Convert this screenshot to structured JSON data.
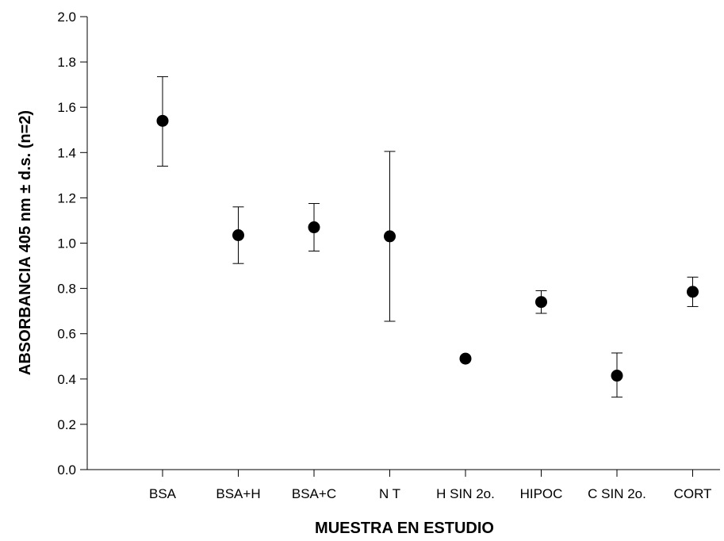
{
  "chart_data": {
    "type": "scatter",
    "title": "",
    "xlabel": "MUESTRA EN ESTUDIO",
    "ylabel": "ABSORBANCIA 405 nm ± d.s. (n=2)",
    "ylim": [
      0,
      2.0
    ],
    "yticks": [
      "0.0",
      "0.2",
      "0.4",
      "0.6",
      "0.8",
      "1.0",
      "1.2",
      "1.4",
      "1.6",
      "1.8",
      "2.0"
    ],
    "grid": false,
    "categories": [
      "BSA",
      "BSA+H",
      "BSA+C",
      "N T",
      "H SIN 2o.",
      "HIPOC",
      "C SIN 2o.",
      "CORT"
    ],
    "values": [
      1.54,
      1.035,
      1.07,
      1.03,
      0.49,
      0.74,
      0.415,
      0.785
    ],
    "error_low": [
      1.34,
      0.91,
      0.965,
      0.655,
      0.49,
      0.69,
      0.32,
      0.72
    ],
    "error_high": [
      1.735,
      1.16,
      1.175,
      1.405,
      0.49,
      0.79,
      0.515,
      0.85
    ],
    "marker_color": "#000000"
  }
}
